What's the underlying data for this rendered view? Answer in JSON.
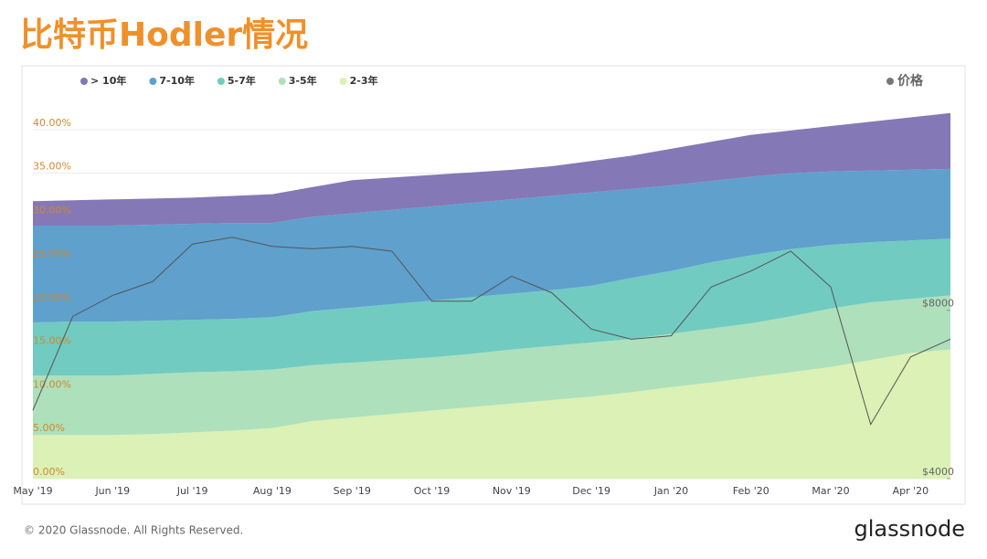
{
  "header": {
    "title": "比特币Hodler情况"
  },
  "chart_data": {
    "type": "stacked-area",
    "categories": [
      "May '19",
      null,
      "Jun '19",
      null,
      "Jul '19",
      null,
      "Aug '19",
      null,
      "Sep '19",
      null,
      "Oct '19",
      null,
      "Nov '19",
      null,
      "Dec '19",
      null,
      "Jan '20",
      null,
      "Feb '20",
      null,
      "Mar '20",
      null,
      "Apr '20",
      null
    ],
    "series": [
      {
        "name": "> 10年",
        "color": "#8479b6",
        "values": [
          2.8,
          2.9,
          3.0,
          3.0,
          3.0,
          3.1,
          3.3,
          3.4,
          3.8,
          3.7,
          3.6,
          3.5,
          3.4,
          3.4,
          3.6,
          3.8,
          4.2,
          4.5,
          4.8,
          4.9,
          5.2,
          5.6,
          6.0,
          6.4
        ]
      },
      {
        "name": "7-10年",
        "color": "#5fa0cd",
        "values": [
          11.1,
          11.0,
          11.0,
          11.0,
          11.0,
          11.0,
          10.8,
          10.8,
          10.8,
          10.8,
          10.8,
          10.8,
          10.8,
          10.8,
          10.7,
          10.2,
          9.8,
          9.3,
          9.0,
          8.7,
          8.4,
          8.2,
          8.1,
          8.0
        ]
      },
      {
        "name": "5-7年",
        "color": "#71cbc1",
        "values": [
          6.1,
          6.2,
          6.2,
          6.1,
          6.0,
          6.0,
          6.0,
          6.2,
          6.3,
          6.4,
          6.5,
          6.5,
          6.4,
          6.4,
          6.5,
          7.0,
          7.2,
          7.6,
          7.8,
          7.7,
          7.3,
          6.9,
          6.7,
          6.5
        ]
      },
      {
        "name": "3-5年",
        "color": "#aee0bb",
        "values": [
          6.8,
          6.8,
          6.8,
          6.9,
          6.9,
          6.8,
          6.7,
          6.4,
          6.3,
          6.2,
          6.1,
          6.1,
          6.2,
          6.2,
          6.2,
          6.1,
          6.1,
          6.2,
          6.2,
          6.4,
          6.7,
          6.6,
          6.2,
          6.2
        ]
      },
      {
        "name": "2-3年",
        "color": "#dbf1b5",
        "values": [
          5.0,
          5.0,
          5.0,
          5.1,
          5.3,
          5.5,
          5.8,
          6.6,
          7.0,
          7.4,
          7.8,
          8.2,
          8.6,
          9.0,
          9.4,
          9.9,
          10.5,
          11.0,
          11.6,
          12.2,
          12.8,
          13.6,
          14.4,
          14.8
        ]
      },
      {
        "name": "价格",
        "color": "#555555",
        "axis": "y2",
        "values": [
          5300,
          7800,
          8500,
          9000,
          10500,
          10800,
          10400,
          10300,
          10400,
          10200,
          8300,
          8300,
          9200,
          8600,
          7400,
          7100,
          7200,
          8800,
          9400,
          10200,
          8800,
          5000,
          6600,
          7100
        ]
      }
    ],
    "ylim": [
      0,
      42.5
    ],
    "yticks": [
      {
        "value": 0,
        "label": "0.00%"
      },
      {
        "value": 5,
        "label": "5.00%"
      },
      {
        "value": 10,
        "label": "10.00%"
      },
      {
        "value": 15,
        "label": "15.00%"
      },
      {
        "value": 20,
        "label": "20.00%"
      },
      {
        "value": 25,
        "label": "25.00%"
      },
      {
        "value": 30,
        "label": "30.00%"
      },
      {
        "value": 35,
        "label": "35.00%"
      },
      {
        "value": 40,
        "label": "40.00%"
      }
    ],
    "y2lim": [
      4000,
      18400
    ],
    "y2scale": "log",
    "y2ticks": [
      {
        "value": 4000,
        "label": "$4000"
      },
      {
        "value": 8000,
        "label": "$8000"
      }
    ],
    "grid": true,
    "legend": "top-left",
    "watermark": "glassnode"
  },
  "footer": {
    "copyright": "© 2020 Glassnode. All Rights Reserved.",
    "logo": "glassnode"
  }
}
